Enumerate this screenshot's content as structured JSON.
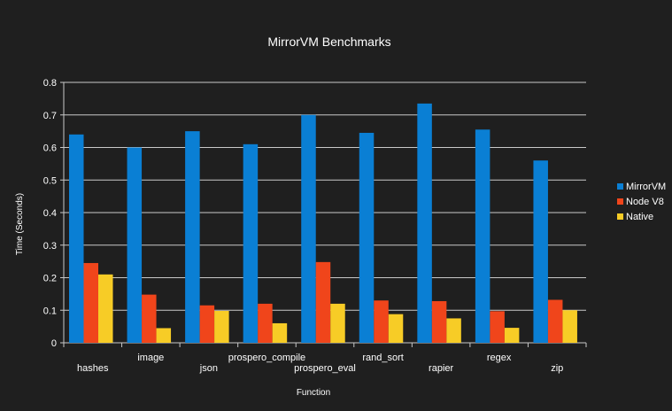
{
  "chart_data": {
    "type": "bar",
    "title": "MirrorVM Benchmarks",
    "xlabel": "Function",
    "ylabel": "Time (Seconds)",
    "ylim": [
      0,
      0.8
    ],
    "yticks": [
      "0",
      "0.1",
      "0.2",
      "0.3",
      "0.4",
      "0.5",
      "0.6",
      "0.7",
      "0.8"
    ],
    "grid": true,
    "legend_position": "right",
    "categories": [
      "hashes",
      "image",
      "json",
      "prospero_compile",
      "prospero_eval",
      "rand_sort",
      "rapier",
      "regex",
      "zip"
    ],
    "series": [
      {
        "name": "MirrorVM",
        "color": "#0a7fd4",
        "values": [
          0.64,
          0.6,
          0.65,
          0.61,
          0.7,
          0.645,
          0.735,
          0.655,
          0.56
        ]
      },
      {
        "name": "Node V8",
        "color": "#f0451b",
        "values": [
          0.245,
          0.148,
          0.115,
          0.12,
          0.248,
          0.13,
          0.128,
          0.097,
          0.132
        ]
      },
      {
        "name": "Native",
        "color": "#f7cc26",
        "values": [
          0.21,
          0.045,
          0.098,
          0.06,
          0.12,
          0.088,
          0.075,
          0.046,
          0.1
        ]
      }
    ]
  }
}
